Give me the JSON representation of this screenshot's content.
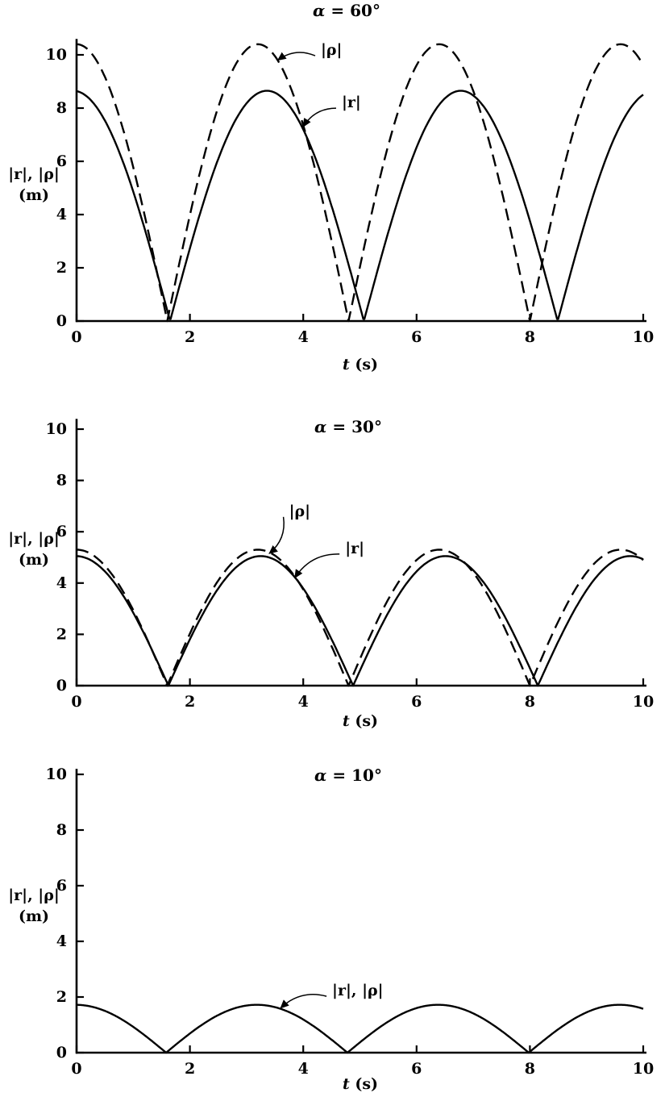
{
  "figure": {
    "background": "#ffffff",
    "ink_color": "#000000"
  },
  "chart_data": [
    {
      "type": "line",
      "title": "α = 60°",
      "xlabel": "t (s)",
      "ylabel_lines": [
        "|r|, |ρ|",
        "(m)"
      ],
      "xlim": [
        0,
        10
      ],
      "ylim": [
        0,
        10.6
      ],
      "xticks": [
        0,
        2,
        4,
        6,
        8,
        10
      ],
      "yticks": [
        0,
        2,
        4,
        6,
        8,
        10
      ],
      "grid": false,
      "legend_position": "inline-annotations",
      "series": [
        {
          "name": "|ρ|",
          "style": "dashed",
          "model": "abs_sine",
          "amplitude": 10.4,
          "first_zero_t": 1.6,
          "half_period": 3.2,
          "zeros_t": [
            1.6,
            4.8,
            8.0
          ],
          "peaks_t": [
            0,
            3.2,
            6.4,
            9.6
          ],
          "peak_value": 10.4,
          "value_at_t0": 10.4,
          "value_at_t10": 9.6
        },
        {
          "name": "|r|",
          "style": "solid",
          "model": "abs_sine",
          "amplitude": 8.65,
          "first_zero_t": 1.65,
          "half_period": 3.42,
          "zeros_t": [
            1.65,
            5.07,
            8.49
          ],
          "peaks_t": [
            3.36,
            6.78
          ],
          "peak_value": 8.65,
          "value_at_t0": 8.65,
          "value_at_t10": 8.5
        }
      ],
      "annotations": [
        {
          "text": "|ρ|",
          "label_x": 4.31,
          "label_y": 10.18,
          "tip_x": 3.55,
          "tip_y": 9.8,
          "bow_side": 1
        },
        {
          "text": "|r|",
          "label_x": 4.68,
          "label_y": 8.21,
          "tip_x": 4.0,
          "tip_y": 7.3,
          "bow_side": 1
        }
      ]
    },
    {
      "type": "line",
      "title": "α = 30°",
      "xlabel": "t (s)",
      "ylabel_lines": [
        "|r|, |ρ|",
        "(m)"
      ],
      "xlim": [
        0,
        10
      ],
      "ylim": [
        0,
        10.4
      ],
      "xticks": [
        0,
        2,
        4,
        6,
        8,
        10
      ],
      "yticks": [
        0,
        2,
        4,
        6,
        8,
        10
      ],
      "grid": false,
      "legend_position": "inline-annotations",
      "series": [
        {
          "name": "|ρ|",
          "style": "dashed",
          "model": "abs_sine",
          "amplitude": 5.3,
          "first_zero_t": 1.6,
          "half_period": 3.2,
          "zeros_t": [
            1.6,
            4.8,
            8.0
          ],
          "peaks_t": [
            0,
            3.2,
            6.4,
            9.6
          ],
          "peak_value": 5.3,
          "value_at_t0": 5.3,
          "value_at_t10": 4.9
        },
        {
          "name": "|r|",
          "style": "solid",
          "model": "abs_sine",
          "amplitude": 5.05,
          "first_zero_t": 1.62,
          "half_period": 3.26,
          "zeros_t": [
            1.62,
            4.88,
            8.14
          ],
          "peaks_t": [
            3.25,
            6.51,
            9.77
          ],
          "peak_value": 5.05,
          "value_at_t0": 5.05,
          "value_at_t10": 4.9
        }
      ],
      "annotations": [
        {
          "text": "|ρ|",
          "label_x": 3.75,
          "label_y": 6.8,
          "tip_x": 3.4,
          "tip_y": 5.15,
          "bow_side": -1
        },
        {
          "text": "|r|",
          "label_x": 4.74,
          "label_y": 5.35,
          "tip_x": 3.85,
          "tip_y": 4.2,
          "bow_side": 1
        }
      ]
    },
    {
      "type": "line",
      "title": "α = 10°",
      "xlabel": "t (s)",
      "ylabel_lines": [
        "|r|, |ρ|",
        "(m)"
      ],
      "xlim": [
        0,
        10
      ],
      "ylim": [
        0,
        10.2
      ],
      "xticks": [
        0,
        2,
        4,
        6,
        8,
        10
      ],
      "yticks": [
        0,
        2,
        4,
        6,
        8,
        10
      ],
      "grid": false,
      "legend_position": "inline-annotations",
      "series": [
        {
          "name": "|r|, |ρ|",
          "style": "solid",
          "model": "abs_sine",
          "amplitude": 1.72,
          "first_zero_t": 1.58,
          "half_period": 3.2,
          "zeros_t": [
            1.58,
            4.78,
            7.98
          ],
          "peaks_t": [
            0,
            3.18,
            6.38,
            9.58
          ],
          "peak_value": 1.72,
          "value_at_t0": 1.72,
          "value_at_t10": 1.6
        }
      ],
      "annotations": [
        {
          "text": "|r|, |ρ|",
          "label_x": 4.51,
          "label_y": 2.23,
          "tip_x": 3.6,
          "tip_y": 1.6,
          "bow_side": 1
        }
      ]
    }
  ]
}
